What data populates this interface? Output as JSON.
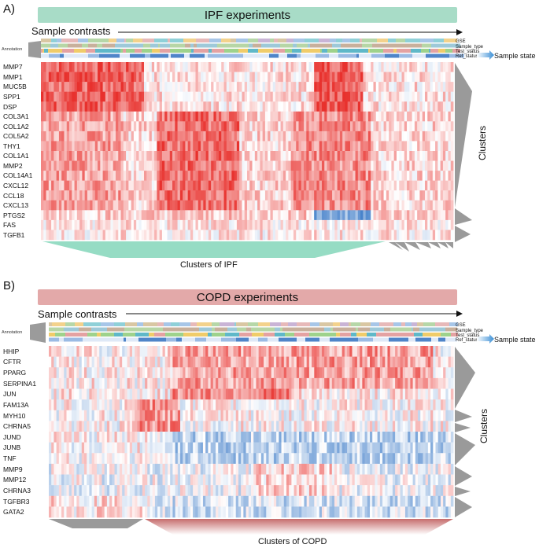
{
  "panel_a": {
    "letter": "A)",
    "banner": "IPF experiments",
    "contrasts_label": "Sample contrasts",
    "annotation_label": "Annotation",
    "annotation_tracks": [
      "GSE",
      "Sample_type",
      "Test_status",
      "Ref_status"
    ],
    "sample_state_label": "Sample state",
    "genes": [
      "MMP7",
      "MMP1",
      "MUC5B",
      "SPP1",
      "DSP",
      "COL3A1",
      "COL1A2",
      "COL5A2",
      "THY1",
      "COL1A1",
      "MMP2",
      "COL14A1",
      "CXCL12",
      "CCL18",
      "CXCL13",
      "PTGS2",
      "FAS",
      "TGFB1"
    ],
    "clusters_label": "Clusters",
    "cluster_caption": "Clusters of IPF"
  },
  "panel_b": {
    "letter": "B)",
    "banner": "COPD experiments",
    "contrasts_label": "Sample contrasts",
    "annotation_label": "Annotation",
    "annotation_tracks": [
      "GSE",
      "Sample_type",
      "Test_status",
      "Ref_status"
    ],
    "sample_state_label": "Sample state",
    "genes": [
      "HHIP",
      "CFTR",
      "PPARG",
      "SERPINA1",
      "JUN",
      "FAM13A",
      "MYH10",
      "CHRNA5",
      "JUND",
      "JUNB",
      "TNF",
      "MMP9",
      "MMP12",
      "CHRNA3",
      "TGFBR3",
      "GATA2"
    ],
    "clusters_label": "Clusters",
    "cluster_caption": "Clusters of COPD"
  },
  "colors": {
    "ipf_banner": "#a8dcc7",
    "copd_banner": "#e3a9a9",
    "up": "#e8312d",
    "down": "#2f72c4",
    "neutral": "#ffffff",
    "cluster_wedge": "#9a9a9a",
    "ipf_wedge": "#3fbf93",
    "copd_wedge": "#b84848"
  }
}
